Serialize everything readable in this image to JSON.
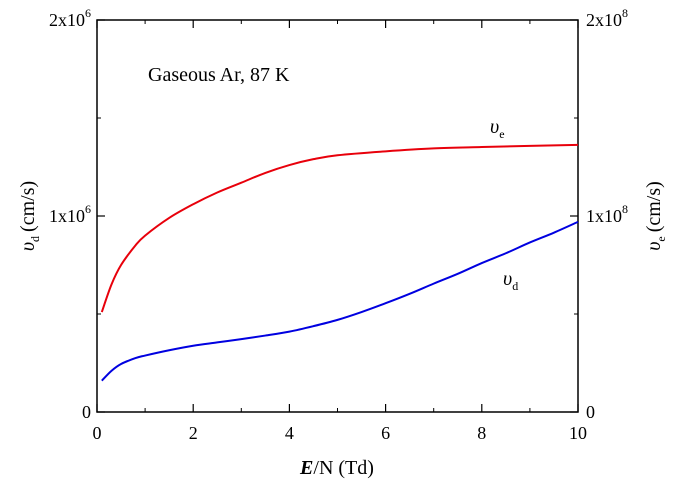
{
  "chart_data": {
    "type": "line",
    "annotation": "Gaseous Ar, 87 K",
    "xlabel": {
      "prefix": "E",
      "suffix": "/N (Td)"
    },
    "ylabel_left": {
      "symbol": "υ",
      "subscript": "d",
      "unit": "(cm/s)"
    },
    "ylabel_right": {
      "symbol": "υ",
      "subscript": "e",
      "unit": "(cm/s)"
    },
    "xlim": [
      0,
      10
    ],
    "ylim_left": [
      0,
      2000000
    ],
    "ylim_right": [
      0,
      200000000
    ],
    "x_ticks": [
      0,
      2,
      4,
      6,
      8,
      10
    ],
    "y_ticks_left": [
      {
        "value": 0,
        "base": "0",
        "exp": ""
      },
      {
        "value": 1000000,
        "base": "1x10",
        "exp": "6"
      },
      {
        "value": 2000000,
        "base": "2x10",
        "exp": "6"
      }
    ],
    "y_ticks_right": [
      {
        "value": 0,
        "base": "0",
        "exp": ""
      },
      {
        "value": 100000000,
        "base": "1x10",
        "exp": "8"
      },
      {
        "value": 200000000,
        "base": "2x10",
        "exp": "8"
      }
    ],
    "grid": false,
    "series": [
      {
        "name": "υe",
        "label_symbol": "υ",
        "label_subscript": "e",
        "axis": "right",
        "color": "#e8000b",
        "x": [
          0.1,
          0.3,
          0.5,
          0.8,
          1.0,
          1.5,
          2.0,
          2.5,
          3.0,
          3.5,
          4.0,
          4.5,
          5.0,
          6.0,
          7.0,
          8.0,
          9.0,
          10.0
        ],
        "y": [
          51000000,
          65000000,
          75000000,
          85000000,
          90000000,
          99000000,
          106000000,
          112000000,
          117000000,
          122000000,
          126000000,
          129000000,
          131000000,
          133000000,
          134500000,
          135200000,
          135800000,
          136300000
        ]
      },
      {
        "name": "υd",
        "label_symbol": "υ",
        "label_subscript": "d",
        "axis": "left",
        "color": "#0000e0",
        "x": [
          0.1,
          0.3,
          0.5,
          0.8,
          1.0,
          1.5,
          2.0,
          2.5,
          3.0,
          3.5,
          4.0,
          4.5,
          5.0,
          5.5,
          6.0,
          6.5,
          7.0,
          7.5,
          8.0,
          8.5,
          9.0,
          9.5,
          10.0
        ],
        "y": [
          160000,
          210000,
          245000,
          275000,
          288000,
          315000,
          338000,
          355000,
          372000,
          390000,
          410000,
          438000,
          470000,
          510000,
          555000,
          603000,
          655000,
          705000,
          760000,
          810000,
          865000,
          915000,
          970000
        ]
      }
    ]
  }
}
